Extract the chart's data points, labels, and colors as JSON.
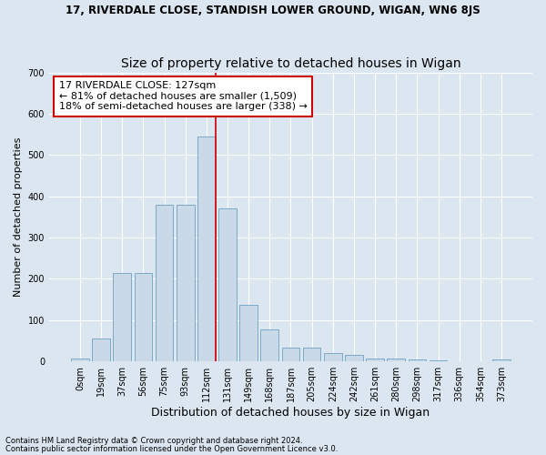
{
  "title": "17, RIVERDALE CLOSE, STANDISH LOWER GROUND, WIGAN, WN6 8JS",
  "subtitle": "Size of property relative to detached houses in Wigan",
  "xlabel": "Distribution of detached houses by size in Wigan",
  "ylabel": "Number of detached properties",
  "footer1": "Contains HM Land Registry data © Crown copyright and database right 2024.",
  "footer2": "Contains public sector information licensed under the Open Government Licence v3.0.",
  "categories": [
    "0sqm",
    "19sqm",
    "37sqm",
    "56sqm",
    "75sqm",
    "93sqm",
    "112sqm",
    "131sqm",
    "149sqm",
    "168sqm",
    "187sqm",
    "205sqm",
    "224sqm",
    "242sqm",
    "261sqm",
    "280sqm",
    "298sqm",
    "317sqm",
    "336sqm",
    "354sqm",
    "373sqm"
  ],
  "values": [
    7,
    55,
    215,
    215,
    380,
    380,
    545,
    370,
    138,
    77,
    33,
    33,
    20,
    15,
    8,
    8,
    5,
    3,
    0,
    0,
    5
  ],
  "bar_color": "#c9d9e8",
  "bar_edge_color": "#7aaac8",
  "vline_color": "#cc0000",
  "vline_bin": 6,
  "annotation_title": "17 RIVERDALE CLOSE: 127sqm",
  "annotation_line1": "← 81% of detached houses are smaller (1,509)",
  "annotation_line2": "18% of semi-detached houses are larger (338) →",
  "annotation_box_facecolor": "#ffffff",
  "annotation_box_edgecolor": "#cc0000",
  "background_color": "#dce6f0",
  "plot_background_color": "#dce6f0",
  "ylim": [
    0,
    700
  ],
  "yticks": [
    0,
    100,
    200,
    300,
    400,
    500,
    600,
    700
  ],
  "title_fontsize": 8.5,
  "subtitle_fontsize": 10,
  "xlabel_fontsize": 9,
  "ylabel_fontsize": 8,
  "tick_fontsize": 7,
  "annotation_fontsize": 8,
  "footer_fontsize": 6
}
